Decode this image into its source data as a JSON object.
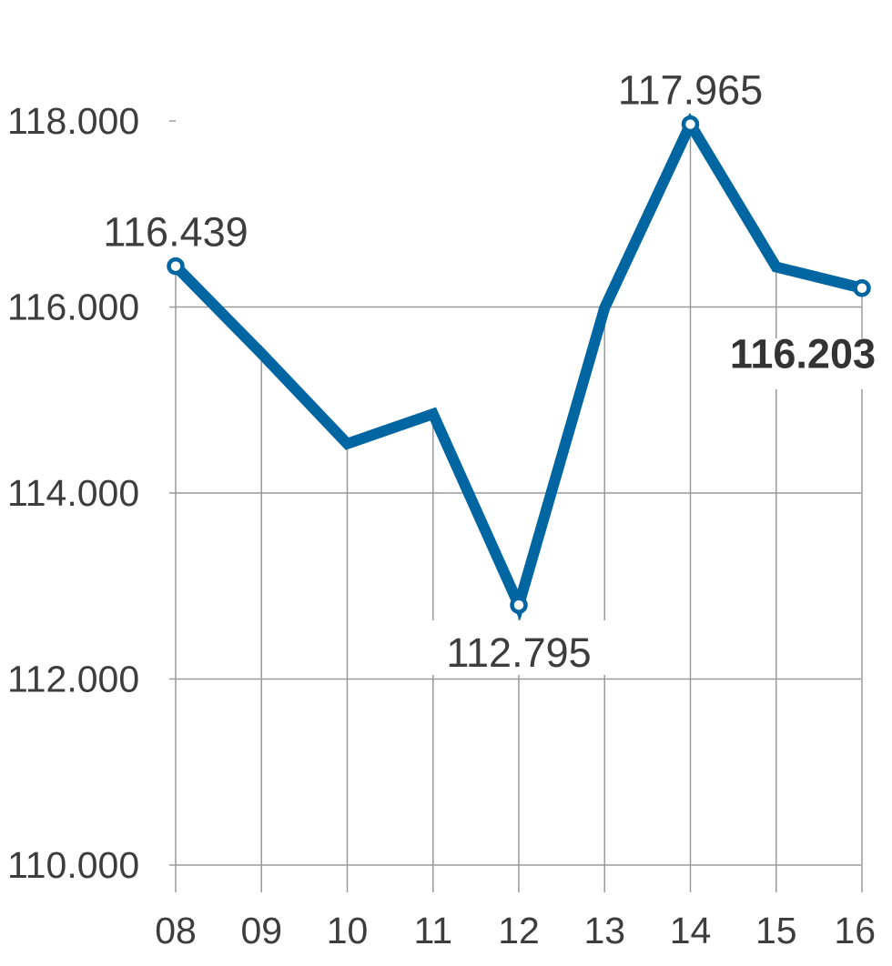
{
  "chart_data": {
    "type": "line",
    "title": "",
    "xlabel": "",
    "ylabel": "",
    "categories": [
      "08",
      "09",
      "10",
      "11",
      "12",
      "13",
      "14",
      "15",
      "16"
    ],
    "series": [
      {
        "values": [
          116439,
          115500,
          114530,
          114850,
          112795,
          115990,
          117965,
          116430,
          116203
        ]
      }
    ],
    "ylim": [
      110000,
      118000
    ],
    "yticks": [
      110000,
      112000,
      114000,
      116000,
      118000
    ],
    "ytick_labels": [
      "110.000",
      "112.000",
      "114.000",
      "116.000",
      "118.000"
    ],
    "grid": true,
    "annotations": [
      {
        "index": 0,
        "text": "116.439",
        "bold": false,
        "position": "above"
      },
      {
        "index": 4,
        "text": "112.795",
        "bold": false,
        "position": "below"
      },
      {
        "index": 6,
        "text": "117.965",
        "bold": false,
        "position": "above"
      },
      {
        "index": 8,
        "text": "116.203",
        "bold": true,
        "position": "below-left"
      }
    ],
    "colors": {
      "line": "#0066a1",
      "grid": "#9a9a9a",
      "text": "#3d3d3d"
    }
  }
}
